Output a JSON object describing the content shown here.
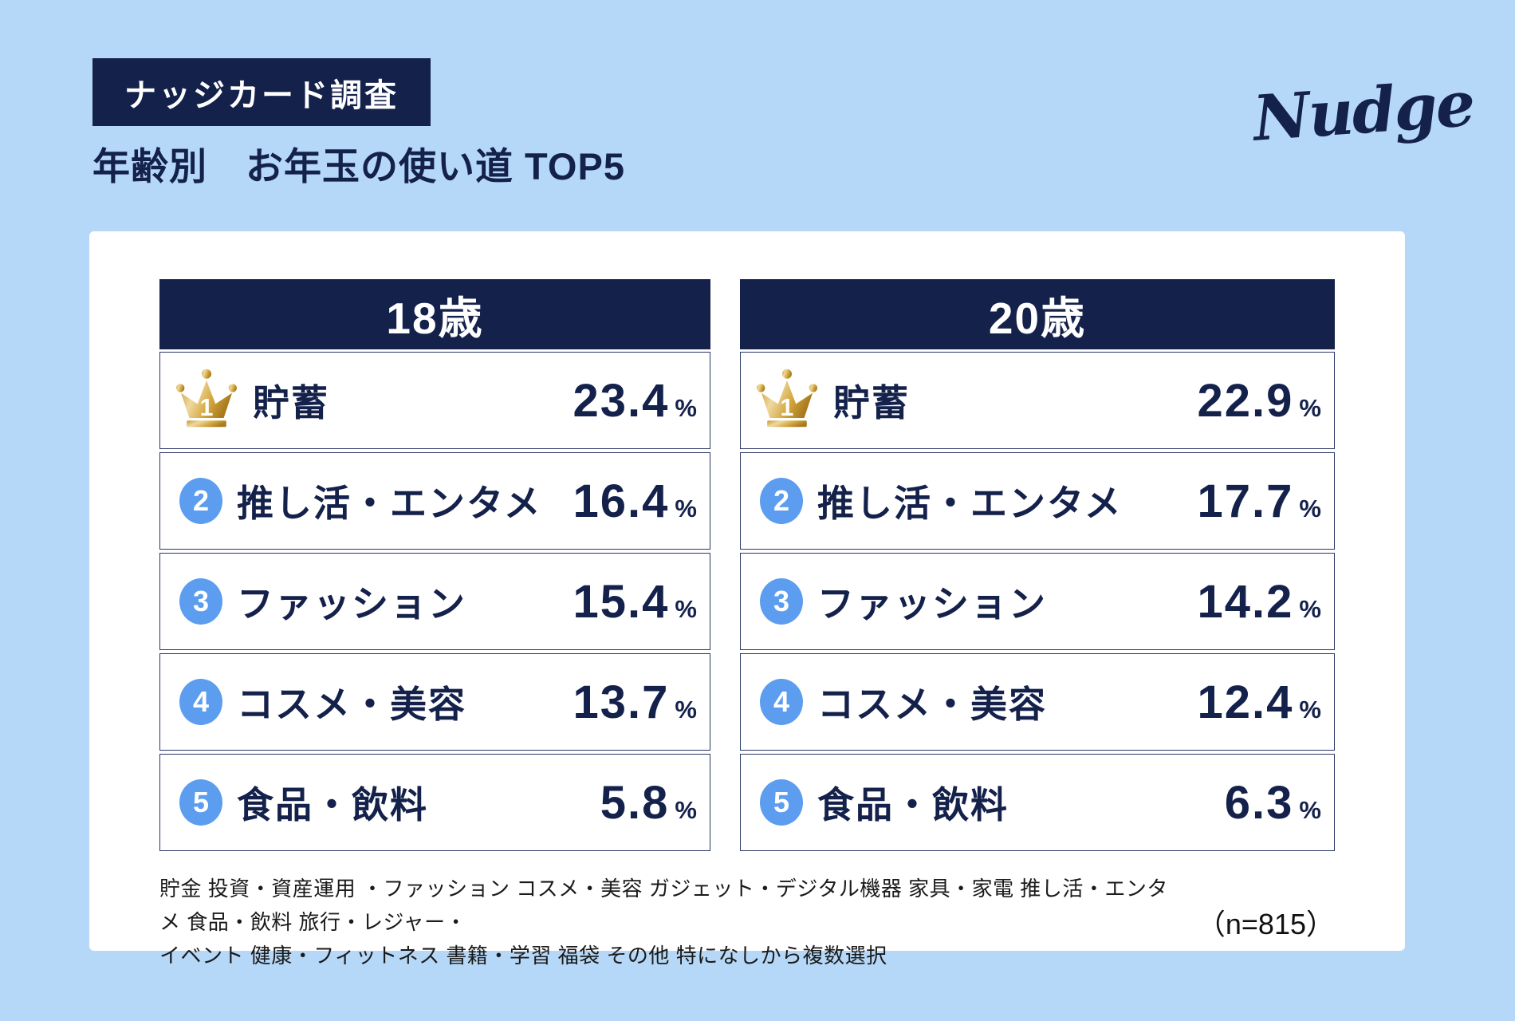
{
  "colors": {
    "navy": "#14214B",
    "background_blue": "#B6D8F8",
    "rank_badge_blue": "#5C9DF0",
    "crown_gold": "#D4A94E",
    "card_white": "#FFFFFF"
  },
  "header": {
    "badge_label": "ナッジカード調査",
    "title": "年齢別　お年玉の使い道 TOP5",
    "logo_text": "Nudge"
  },
  "chart_data": {
    "type": "table",
    "title": "年齢別 お年玉の使い道 TOP5",
    "unit": "%",
    "groups": [
      {
        "header": "18歳",
        "categories": [
          "貯蓄",
          "推し活・エンタメ",
          "ファッション",
          "コスメ・美容",
          "食品・飲料"
        ],
        "values": [
          23.4,
          16.4,
          15.4,
          13.7,
          5.8
        ]
      },
      {
        "header": "20歳",
        "categories": [
          "貯蓄",
          "推し活・エンタメ",
          "ファッション",
          "コスメ・美容",
          "食品・飲料"
        ],
        "values": [
          22.9,
          17.7,
          14.2,
          12.4,
          6.3
        ]
      }
    ],
    "sample_size": 815
  },
  "tables": [
    {
      "header": "18歳",
      "rows": [
        {
          "rank": "1",
          "label": "貯蓄",
          "value": "23.4",
          "unit": "%"
        },
        {
          "rank": "2",
          "label": "推し活・エンタメ",
          "value": "16.4",
          "unit": "%"
        },
        {
          "rank": "3",
          "label": "ファッション",
          "value": "15.4",
          "unit": "%"
        },
        {
          "rank": "4",
          "label": "コスメ・美容",
          "value": "13.7",
          "unit": "%"
        },
        {
          "rank": "5",
          "label": "食品・飲料",
          "value": "5.8",
          "unit": "%"
        }
      ]
    },
    {
      "header": "20歳",
      "rows": [
        {
          "rank": "1",
          "label": "貯蓄",
          "value": "22.9",
          "unit": "%"
        },
        {
          "rank": "2",
          "label": "推し活・エンタメ",
          "value": "17.7",
          "unit": "%"
        },
        {
          "rank": "3",
          "label": "ファッション",
          "value": "14.2",
          "unit": "%"
        },
        {
          "rank": "4",
          "label": "コスメ・美容",
          "value": "12.4",
          "unit": "%"
        },
        {
          "rank": "5",
          "label": "食品・飲料",
          "value": "6.3",
          "unit": "%"
        }
      ]
    }
  ],
  "footnote": {
    "line1": "貯金 投資・資産運用 ・ファッション コスメ・美容 ガジェット・デジタル機器 家具・家電 推し活・エンタメ 食品・飲料 旅行・レジャー・",
    "line2": "イベント 健康・フィットネス 書籍・学習 福袋 その他 特になしから複数選択",
    "sample": "（n=815）"
  }
}
